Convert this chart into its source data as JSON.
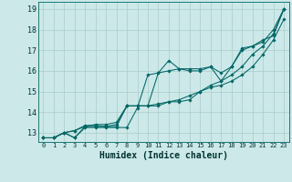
{
  "background_color": "#cce8e8",
  "grid_color": "#aacccc",
  "line_color": "#006666",
  "marker_color": "#006666",
  "xlabel": "Humidex (Indice chaleur)",
  "ylim": [
    12.55,
    19.35
  ],
  "xlim": [
    -0.5,
    23.5
  ],
  "yticks": [
    13,
    14,
    15,
    16,
    17,
    18,
    19
  ],
  "xticks": [
    0,
    1,
    2,
    3,
    4,
    5,
    6,
    7,
    8,
    9,
    10,
    11,
    12,
    13,
    14,
    15,
    16,
    17,
    18,
    19,
    20,
    21,
    22,
    23
  ],
  "series": [
    [
      12.75,
      12.75,
      13.0,
      12.75,
      13.25,
      13.25,
      13.25,
      13.25,
      13.25,
      14.2,
      15.8,
      15.9,
      16.5,
      16.1,
      16.1,
      16.1,
      16.2,
      15.9,
      16.2,
      17.1,
      17.2,
      17.5,
      17.7,
      19.0
    ],
    [
      12.75,
      12.75,
      13.0,
      12.75,
      13.3,
      13.3,
      13.3,
      13.3,
      14.3,
      14.3,
      14.3,
      15.9,
      16.0,
      16.1,
      16.0,
      16.0,
      16.2,
      15.5,
      16.2,
      17.0,
      17.2,
      17.4,
      18.0,
      19.0
    ],
    [
      12.75,
      12.75,
      13.0,
      13.1,
      13.35,
      13.35,
      13.3,
      13.4,
      14.3,
      14.3,
      14.3,
      14.3,
      14.5,
      14.5,
      14.6,
      15.0,
      15.2,
      15.3,
      15.5,
      15.8,
      16.2,
      16.8,
      17.5,
      18.5
    ],
    [
      12.75,
      12.75,
      13.0,
      13.1,
      13.3,
      13.4,
      13.4,
      13.5,
      14.3,
      14.3,
      14.3,
      14.4,
      14.5,
      14.6,
      14.8,
      15.0,
      15.3,
      15.5,
      15.8,
      16.2,
      16.8,
      17.2,
      17.8,
      19.0
    ]
  ]
}
